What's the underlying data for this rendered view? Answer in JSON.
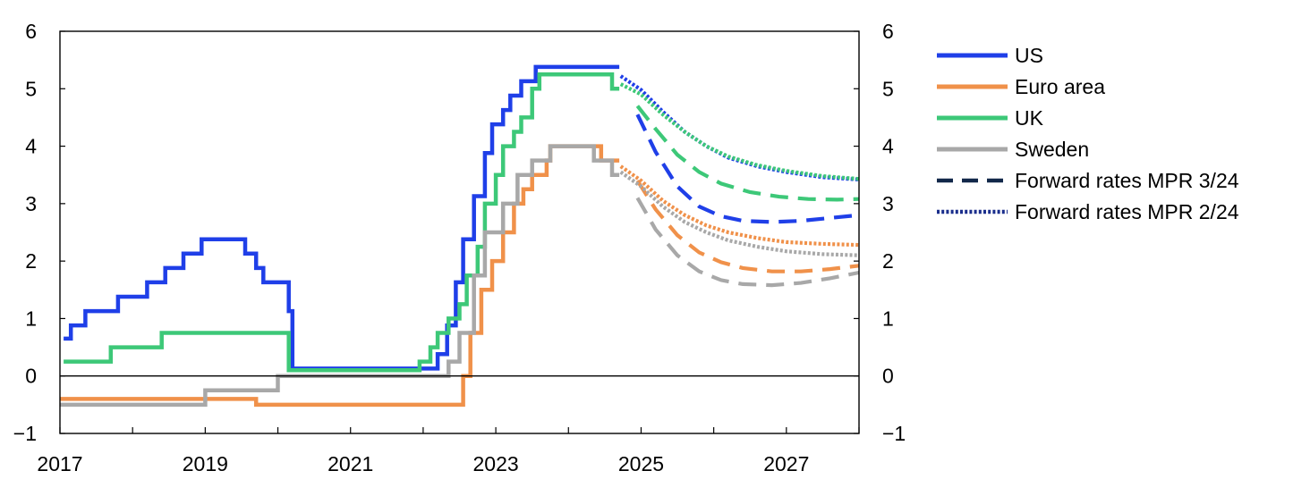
{
  "chart_data": {
    "type": "line",
    "title": "",
    "xlabel": "",
    "ylabel": "",
    "xlim": [
      2017.0,
      2028.0
    ],
    "ylim": [
      -1,
      6
    ],
    "x_ticks": [
      {
        "value": 2017,
        "label": "2017"
      },
      {
        "value": 2019,
        "label": "2019"
      },
      {
        "value": 2021,
        "label": "2021"
      },
      {
        "value": 2023,
        "label": "2023"
      },
      {
        "value": 2025,
        "label": "2025"
      },
      {
        "value": 2027,
        "label": "2027"
      }
    ],
    "y_ticks": [
      {
        "value": -1,
        "label": "−1"
      },
      {
        "value": 0,
        "label": "0"
      },
      {
        "value": 1,
        "label": "1"
      },
      {
        "value": 2,
        "label": "2"
      },
      {
        "value": 3,
        "label": "3"
      },
      {
        "value": 4,
        "label": "4"
      },
      {
        "value": 5,
        "label": "5"
      },
      {
        "value": 6,
        "label": "6"
      }
    ],
    "dual_y_axis": true,
    "zero_line": true,
    "grid": false,
    "legend_position": "right",
    "legend": [
      {
        "label": "US",
        "color": "#1f3fe8",
        "style": "solid"
      },
      {
        "label": "Euro area",
        "color": "#f0914a",
        "style": "solid"
      },
      {
        "label": "UK",
        "color": "#3dc878",
        "style": "solid"
      },
      {
        "label": "Sweden",
        "color": "#a8a8a8",
        "style": "solid"
      },
      {
        "label": "Forward rates MPR 3/24",
        "color": "#12284a",
        "style": "dashed"
      },
      {
        "label": "Forward rates MPR 2/24",
        "color": "#1a2e8c",
        "style": "dotted"
      }
    ],
    "series": [
      {
        "name": "US",
        "color": "#1f3fe8",
        "style": "solid",
        "step": true,
        "points": [
          [
            2017.05,
            0.65
          ],
          [
            2017.15,
            0.88
          ],
          [
            2017.35,
            1.13
          ],
          [
            2017.8,
            1.38
          ],
          [
            2017.98,
            1.38
          ],
          [
            2018.2,
            1.63
          ],
          [
            2018.45,
            1.88
          ],
          [
            2018.7,
            2.13
          ],
          [
            2018.95,
            2.38
          ],
          [
            2019.55,
            2.13
          ],
          [
            2019.7,
            1.88
          ],
          [
            2019.8,
            1.63
          ],
          [
            2020.15,
            1.13
          ],
          [
            2020.2,
            0.13
          ],
          [
            2022.2,
            0.38
          ],
          [
            2022.33,
            0.88
          ],
          [
            2022.45,
            1.63
          ],
          [
            2022.55,
            2.38
          ],
          [
            2022.7,
            3.13
          ],
          [
            2022.85,
            3.88
          ],
          [
            2022.95,
            4.38
          ],
          [
            2023.1,
            4.63
          ],
          [
            2023.2,
            4.88
          ],
          [
            2023.35,
            5.13
          ],
          [
            2023.55,
            5.38
          ],
          [
            2024.7,
            5.38
          ]
        ]
      },
      {
        "name": "Euro area",
        "color": "#f0914a",
        "style": "solid",
        "step": true,
        "points": [
          [
            2017.0,
            -0.4
          ],
          [
            2019.7,
            -0.5
          ],
          [
            2022.55,
            0.0
          ],
          [
            2022.65,
            0.75
          ],
          [
            2022.8,
            1.5
          ],
          [
            2022.95,
            2.0
          ],
          [
            2023.1,
            2.5
          ],
          [
            2023.25,
            3.0
          ],
          [
            2023.38,
            3.25
          ],
          [
            2023.5,
            3.5
          ],
          [
            2023.7,
            3.75
          ],
          [
            2023.75,
            4.0
          ],
          [
            2024.45,
            3.75
          ],
          [
            2024.7,
            3.75
          ]
        ]
      },
      {
        "name": "UK",
        "color": "#3dc878",
        "style": "solid",
        "step": true,
        "points": [
          [
            2017.05,
            0.25
          ],
          [
            2017.7,
            0.5
          ],
          [
            2018.4,
            0.75
          ],
          [
            2020.15,
            0.1
          ],
          [
            2021.95,
            0.25
          ],
          [
            2022.1,
            0.5
          ],
          [
            2022.2,
            0.75
          ],
          [
            2022.35,
            1.0
          ],
          [
            2022.5,
            1.25
          ],
          [
            2022.6,
            1.75
          ],
          [
            2022.75,
            2.25
          ],
          [
            2022.85,
            3.0
          ],
          [
            2023.0,
            3.5
          ],
          [
            2023.1,
            4.0
          ],
          [
            2023.25,
            4.25
          ],
          [
            2023.35,
            4.5
          ],
          [
            2023.5,
            5.0
          ],
          [
            2023.6,
            5.25
          ],
          [
            2024.6,
            5.0
          ],
          [
            2024.7,
            5.0
          ]
        ]
      },
      {
        "name": "Sweden",
        "color": "#a8a8a8",
        "style": "solid",
        "step": true,
        "points": [
          [
            2017.0,
            -0.5
          ],
          [
            2019.0,
            -0.25
          ],
          [
            2020.0,
            0.0
          ],
          [
            2022.35,
            0.25
          ],
          [
            2022.5,
            0.75
          ],
          [
            2022.7,
            1.75
          ],
          [
            2022.85,
            2.5
          ],
          [
            2023.1,
            3.0
          ],
          [
            2023.3,
            3.5
          ],
          [
            2023.5,
            3.75
          ],
          [
            2023.75,
            4.0
          ],
          [
            2024.35,
            3.75
          ],
          [
            2024.6,
            3.5
          ],
          [
            2024.7,
            3.5
          ]
        ]
      },
      {
        "name": "",
        "color": "#1f3fe8",
        "style": "dashed",
        "points": [
          [
            2024.95,
            4.55
          ],
          [
            2025.2,
            3.9
          ],
          [
            2025.5,
            3.3
          ],
          [
            2025.8,
            2.95
          ],
          [
            2026.1,
            2.78
          ],
          [
            2026.4,
            2.7
          ],
          [
            2026.8,
            2.68
          ],
          [
            2027.2,
            2.7
          ],
          [
            2027.6,
            2.75
          ],
          [
            2028.0,
            2.8
          ]
        ]
      },
      {
        "name": "",
        "color": "#f0914a",
        "style": "dashed",
        "points": [
          [
            2024.95,
            3.4
          ],
          [
            2025.2,
            2.9
          ],
          [
            2025.5,
            2.45
          ],
          [
            2025.8,
            2.15
          ],
          [
            2026.1,
            1.98
          ],
          [
            2026.4,
            1.88
          ],
          [
            2026.8,
            1.82
          ],
          [
            2027.2,
            1.82
          ],
          [
            2027.6,
            1.86
          ],
          [
            2028.0,
            1.92
          ]
        ]
      },
      {
        "name": "",
        "color": "#3dc878",
        "style": "dashed",
        "points": [
          [
            2024.95,
            4.7
          ],
          [
            2025.2,
            4.3
          ],
          [
            2025.5,
            3.85
          ],
          [
            2025.8,
            3.55
          ],
          [
            2026.1,
            3.35
          ],
          [
            2026.5,
            3.2
          ],
          [
            2026.9,
            3.12
          ],
          [
            2027.3,
            3.08
          ],
          [
            2027.7,
            3.07
          ],
          [
            2028.0,
            3.08
          ]
        ]
      },
      {
        "name": "",
        "color": "#a8a8a8",
        "style": "dashed",
        "points": [
          [
            2024.95,
            3.1
          ],
          [
            2025.2,
            2.55
          ],
          [
            2025.5,
            2.1
          ],
          [
            2025.8,
            1.82
          ],
          [
            2026.1,
            1.67
          ],
          [
            2026.4,
            1.6
          ],
          [
            2026.8,
            1.58
          ],
          [
            2027.2,
            1.62
          ],
          [
            2027.6,
            1.7
          ],
          [
            2028.0,
            1.8
          ]
        ]
      },
      {
        "name": "",
        "color": "#1f3fe8",
        "style": "dotted",
        "points": [
          [
            2024.72,
            5.22
          ],
          [
            2025.0,
            4.98
          ],
          [
            2025.3,
            4.6
          ],
          [
            2025.6,
            4.25
          ],
          [
            2025.9,
            4.0
          ],
          [
            2026.2,
            3.8
          ],
          [
            2026.6,
            3.65
          ],
          [
            2027.0,
            3.55
          ],
          [
            2027.5,
            3.46
          ],
          [
            2028.0,
            3.42
          ]
        ]
      },
      {
        "name": "",
        "color": "#f0914a",
        "style": "dotted",
        "points": [
          [
            2024.72,
            3.65
          ],
          [
            2025.0,
            3.4
          ],
          [
            2025.3,
            3.05
          ],
          [
            2025.6,
            2.8
          ],
          [
            2025.9,
            2.62
          ],
          [
            2026.2,
            2.5
          ],
          [
            2026.6,
            2.4
          ],
          [
            2027.0,
            2.33
          ],
          [
            2027.5,
            2.3
          ],
          [
            2028.0,
            2.28
          ]
        ]
      },
      {
        "name": "",
        "color": "#3dc878",
        "style": "dotted",
        "points": [
          [
            2024.72,
            5.08
          ],
          [
            2025.0,
            4.9
          ],
          [
            2025.3,
            4.55
          ],
          [
            2025.6,
            4.25
          ],
          [
            2025.9,
            4.0
          ],
          [
            2026.2,
            3.82
          ],
          [
            2026.6,
            3.67
          ],
          [
            2027.0,
            3.57
          ],
          [
            2027.5,
            3.48
          ],
          [
            2028.0,
            3.43
          ]
        ]
      },
      {
        "name": "",
        "color": "#a8a8a8",
        "style": "dotted",
        "points": [
          [
            2024.72,
            3.55
          ],
          [
            2025.0,
            3.3
          ],
          [
            2025.3,
            2.95
          ],
          [
            2025.6,
            2.68
          ],
          [
            2025.9,
            2.5
          ],
          [
            2026.2,
            2.36
          ],
          [
            2026.6,
            2.25
          ],
          [
            2027.0,
            2.17
          ],
          [
            2027.5,
            2.12
          ],
          [
            2028.0,
            2.1
          ]
        ]
      }
    ]
  }
}
